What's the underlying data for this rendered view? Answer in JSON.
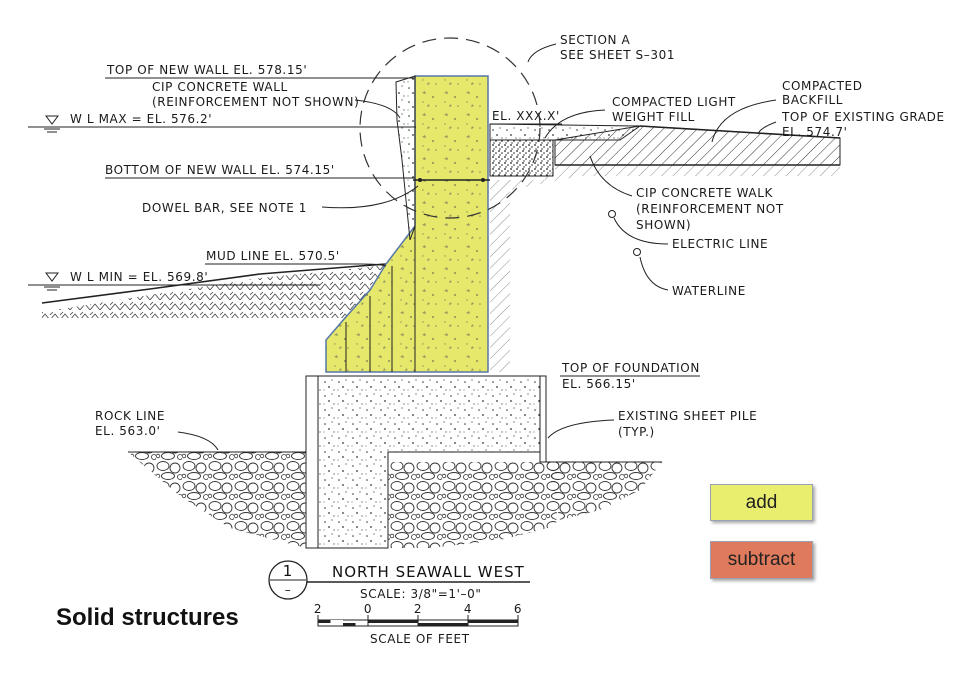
{
  "colors": {
    "add": "#e9ee6f",
    "subtract": "#e07a5c",
    "wall_fill": "#e6e86c",
    "line": "#222222"
  },
  "caption": "Solid structures",
  "legend": {
    "add_label": "add",
    "subtract_label": "subtract"
  },
  "drawing": {
    "section_ref": "SECTION A",
    "section_sheet": "SEE SHEET S–301",
    "top_of_new_wall": "TOP OF NEW WALL EL. 578.15'",
    "cip_wall_1": "CIP CONCRETE WALL",
    "cip_wall_2": "(REINFORCEMENT NOT SHOWN)",
    "wl_max": "W L MAX = EL. 576.2'",
    "el_xxx": "EL. XXX.X'",
    "compacted_light_1": "COMPACTED LIGHT",
    "compacted_light_2": "WEIGHT FILL",
    "compacted_backfill_1": "COMPACTED",
    "compacted_backfill_2": "BACKFILL",
    "top_existing_grade_1": "TOP OF EXISTING GRADE",
    "top_existing_grade_2": "EL. 574.7'",
    "bottom_new_wall": "BOTTOM OF NEW WALL EL. 574.15'",
    "cip_walk_1": "CIP CONCRETE WALK",
    "cip_walk_2": "(REINFORCEMENT NOT",
    "cip_walk_3": "SHOWN)",
    "dowel_bar": "DOWEL BAR, SEE NOTE 1",
    "electric_line": "ELECTRIC LINE",
    "mud_line": "MUD LINE EL. 570.5'",
    "wl_min": "W L MIN = EL. 569.8'",
    "waterline": "WATERLINE",
    "top_foundation_1": "TOP OF FOUNDATION",
    "top_foundation_2": "EL. 566.15'",
    "rock_line_1": "ROCK LINE",
    "rock_line_2": "EL. 563.0'",
    "sheet_pile_1": "EXISTING SHEET PILE",
    "sheet_pile_2": "(TYP.)",
    "detail_number": "1",
    "detail_sub": "–",
    "detail_title": "NORTH SEAWALL WEST",
    "scale_text": "SCALE: 3/8\"=1'–0\"",
    "scale_ticks": [
      "2",
      "0",
      "2",
      "4",
      "6"
    ],
    "scale_units": "SCALE OF FEET"
  }
}
